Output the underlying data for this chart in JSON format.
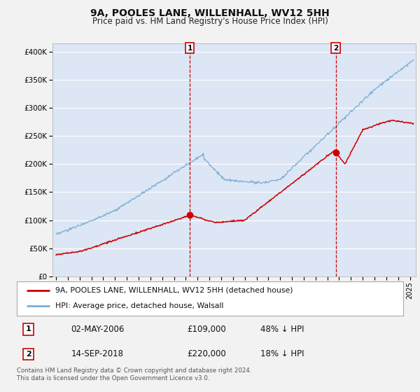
{
  "title": "9A, POOLES LANE, WILLENHALL, WV12 5HH",
  "subtitle": "Price paid vs. HM Land Registry's House Price Index (HPI)",
  "ylabel_ticks": [
    "£0",
    "£50K",
    "£100K",
    "£150K",
    "£200K",
    "£250K",
    "£300K",
    "£350K",
    "£400K"
  ],
  "ytick_vals": [
    0,
    50000,
    100000,
    150000,
    200000,
    250000,
    300000,
    350000,
    400000
  ],
  "ylim": [
    0,
    415000
  ],
  "xlim_start": 1994.7,
  "xlim_end": 2025.5,
  "background_color": "#dce6f5",
  "grid_color": "#ffffff",
  "red_line_color": "#cc0000",
  "blue_line_color": "#7bafd4",
  "legend_label_red": "9A, POOLES LANE, WILLENHALL, WV12 5HH (detached house)",
  "legend_label_blue": "HPI: Average price, detached house, Walsall",
  "marker1_x": 2006.33,
  "marker1_y": 109000,
  "marker2_x": 2018.71,
  "marker2_y": 220000,
  "table_row1": [
    "1",
    "02-MAY-2006",
    "£109,000",
    "48% ↓ HPI"
  ],
  "table_row2": [
    "2",
    "14-SEP-2018",
    "£220,000",
    "18% ↓ HPI"
  ],
  "footer": "Contains HM Land Registry data © Crown copyright and database right 2024.\nThis data is licensed under the Open Government Licence v3.0.",
  "fig_bg": "#f2f2f2",
  "title_fontsize": 10,
  "subtitle_fontsize": 8.5
}
